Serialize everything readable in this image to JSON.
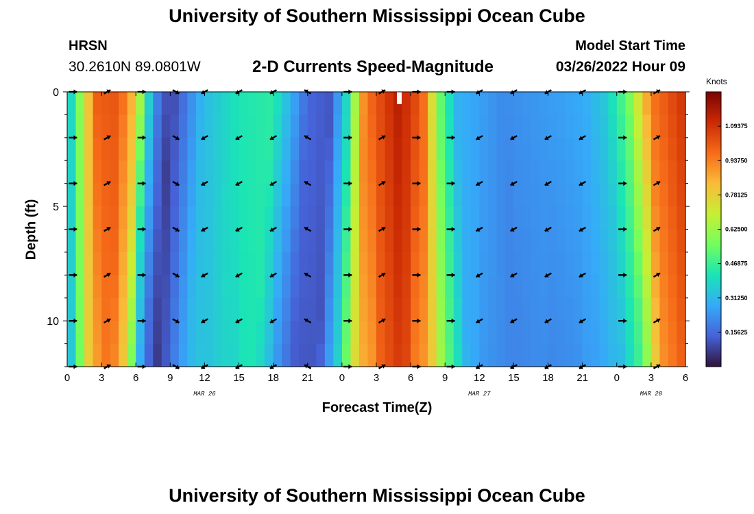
{
  "header": {
    "title": "University of Southern Mississippi Ocean Cube",
    "station": "HRSN",
    "coords": "30.2610N  89.0801W",
    "subtitle": "2-D Currents Speed-Magnitude",
    "model_start_label": "Model Start Time",
    "model_start_value": "03/26/2022 Hour 09"
  },
  "footer": {
    "title": "University of Southern Mississippi Ocean Cube"
  },
  "colorbar": {
    "title": "Knots",
    "ticks": [
      "1.09375",
      "0.93750",
      "0.78125",
      "0.62500",
      "0.46875",
      "0.31250",
      "0.15625"
    ],
    "tick_values": [
      1.09375,
      0.9375,
      0.78125,
      0.625,
      0.46875,
      0.3125,
      0.15625
    ],
    "range": [
      0,
      1.25
    ]
  },
  "chart_data": {
    "type": "heatmap",
    "title": "2-D Currents Speed-Magnitude",
    "xlabel": "Forecast Time(Z)",
    "ylabel": "Depth (ft)",
    "x_tick_labels": [
      "0",
      "3",
      "6",
      "9",
      "12",
      "15",
      "18",
      "21",
      "0",
      "3",
      "6",
      "9",
      "12",
      "15",
      "18",
      "21",
      "0",
      "3",
      "6"
    ],
    "x_hours": [
      0,
      3,
      6,
      9,
      12,
      15,
      18,
      21,
      24,
      27,
      30,
      33,
      36,
      39,
      42,
      45,
      48,
      51,
      54
    ],
    "date_labels": [
      {
        "hour": 12,
        "label": "MAR 26"
      },
      {
        "hour": 36,
        "label": "MAR 27"
      },
      {
        "hour": 51,
        "label": "MAR 28"
      }
    ],
    "y_tick_labels": [
      "0",
      "5",
      "10"
    ],
    "y_ticks": [
      0,
      5,
      10
    ],
    "xlim": [
      0,
      54
    ],
    "ylim": [
      0,
      12
    ],
    "depth_levels_ft": [
      0,
      2,
      4,
      6,
      8,
      10,
      12
    ],
    "speed_keypoints": [
      {
        "hour": 0,
        "speed": 0.3
      },
      {
        "hour": 1,
        "speed": 0.55
      },
      {
        "hour": 2.5,
        "speed": 1.0
      },
      {
        "hour": 4.5,
        "speed": 1.02
      },
      {
        "hour": 6,
        "speed": 0.8
      },
      {
        "hour": 7,
        "speed": 0.4
      },
      {
        "hour": 8,
        "speed": 0.18
      },
      {
        "hour": 9,
        "speed": 0.08
      },
      {
        "hour": 10,
        "speed": 0.15
      },
      {
        "hour": 12,
        "speed": 0.32
      },
      {
        "hour": 15,
        "speed": 0.42
      },
      {
        "hour": 18,
        "speed": 0.45
      },
      {
        "hour": 19.5,
        "speed": 0.3
      },
      {
        "hour": 21,
        "speed": 0.15
      },
      {
        "hour": 23,
        "speed": 0.12
      },
      {
        "hour": 24.5,
        "speed": 0.4
      },
      {
        "hour": 26,
        "speed": 0.95
      },
      {
        "hour": 29,
        "speed": 1.15
      },
      {
        "hour": 31,
        "speed": 1.0
      },
      {
        "hour": 32.5,
        "speed": 0.55
      },
      {
        "hour": 34,
        "speed": 0.3
      },
      {
        "hour": 38,
        "speed": 0.22
      },
      {
        "hour": 42,
        "speed": 0.25
      },
      {
        "hour": 45,
        "speed": 0.28
      },
      {
        "hour": 47,
        "speed": 0.35
      },
      {
        "hour": 49,
        "speed": 0.55
      },
      {
        "hour": 51,
        "speed": 0.95
      },
      {
        "hour": 54,
        "speed": 1.1
      }
    ],
    "vectors": [
      {
        "hour": 0.5,
        "dir": "right"
      },
      {
        "hour": 3.5,
        "dir": "up-right"
      },
      {
        "hour": 6.5,
        "dir": "right"
      },
      {
        "hour": 9.5,
        "dir": "down-right"
      },
      {
        "hour": 12,
        "dir": "down-left"
      },
      {
        "hour": 15,
        "dir": "down-left"
      },
      {
        "hour": 18,
        "dir": "down-left"
      },
      {
        "hour": 21,
        "dir": "up-left"
      },
      {
        "hour": 24.5,
        "dir": "right"
      },
      {
        "hour": 27.5,
        "dir": "up-right"
      },
      {
        "hour": 30.5,
        "dir": "right"
      },
      {
        "hour": 33.5,
        "dir": "right"
      },
      {
        "hour": 36,
        "dir": "down-left"
      },
      {
        "hour": 39,
        "dir": "down-left"
      },
      {
        "hour": 42,
        "dir": "down-left"
      },
      {
        "hour": 45,
        "dir": "down-left"
      },
      {
        "hour": 48.5,
        "dir": "right"
      },
      {
        "hour": 51.5,
        "dir": "up-right"
      }
    ],
    "colors": {
      "colormap": [
        "#30123b",
        "#4662d7",
        "#36aaf9",
        "#1ae4b6",
        "#72fe5e",
        "#c7ef34",
        "#fabb39",
        "#f66b19",
        "#cb2a04",
        "#7a0403"
      ],
      "arrow": "#000000",
      "axis": "#000000"
    }
  }
}
